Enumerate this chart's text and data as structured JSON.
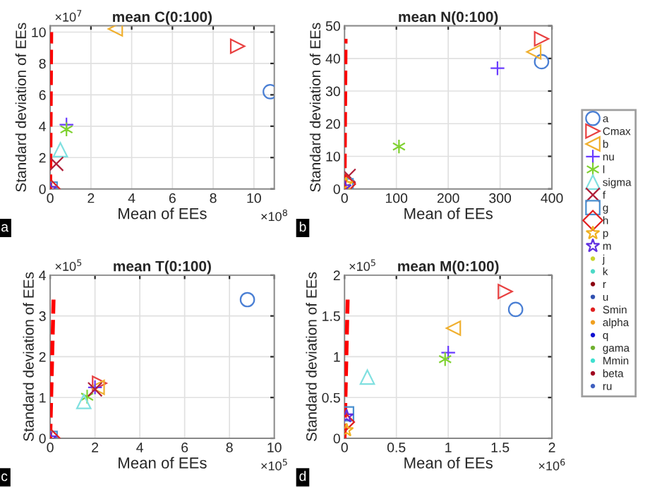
{
  "chart_data": [
    {
      "type": "scatter",
      "title": "mean C(0:100)",
      "xlabel": "Mean of EEs",
      "ylabel": "Standard deviation of EEs",
      "grid": true,
      "xlim": [
        0,
        11
      ],
      "ylim": [
        0,
        10.4
      ],
      "xticks": [
        0,
        2,
        4,
        6,
        8,
        10
      ],
      "yticks": [
        0,
        2,
        4,
        6,
        8,
        10
      ],
      "annotations": [
        "×10$^{7}$",
        "×10$^{8}$",
        "a"
      ],
      "series": [
        {
          "color": "#4a7fd4",
          "marker": "circle",
          "x": [
            10.8
          ],
          "values": [
            6.2
          ]
        },
        {
          "color": "#e84040",
          "marker": "triangle_right",
          "x": [
            9.2
          ],
          "values": [
            9.1
          ]
        },
        {
          "color": "#f0b030",
          "marker": "triangle_left",
          "x": [
            3.2
          ],
          "values": [
            10.2
          ]
        },
        {
          "color": "#6a3cff",
          "marker": "plus",
          "x": [
            0.8
          ],
          "values": [
            4.1
          ]
        },
        {
          "color": "#7fd130",
          "marker": "cross",
          "x": [
            0.8
          ],
          "values": [
            3.8
          ]
        },
        {
          "color": "#80e0e0",
          "marker": "triangle",
          "x": [
            0.5
          ],
          "values": [
            2.5
          ]
        },
        {
          "color": "#b0203a",
          "marker": "x",
          "x": [
            0.3
          ],
          "values": [
            1.6
          ]
        },
        {
          "color": "#4a90d0",
          "marker": "square",
          "x": [
            0
          ],
          "values": [
            0
          ]
        },
        {
          "color": "#e02020",
          "marker": "diamond",
          "x": [
            0
          ],
          "values": [
            0
          ]
        },
        {
          "color": "#f0b020",
          "marker": "star",
          "x": [
            0
          ],
          "values": [
            0
          ]
        },
        {
          "color": "#6030e0",
          "marker": "star",
          "x": [
            0
          ],
          "values": [
            0
          ]
        },
        {
          "type": "line",
          "line_style": "dashed",
          "color": "#ff0000",
          "x": [
            0,
            0.05
          ],
          "values": [
            0,
            10
          ]
        }
      ]
    },
    {
      "type": "scatter",
      "title": "mean N(0:100)",
      "xlabel": "Mean of EEs",
      "ylabel": "Standard deviation of EEs",
      "grid": true,
      "legend": "right",
      "xlim": [
        0,
        400
      ],
      "ylim": [
        0,
        50
      ],
      "xticks": [
        0,
        100,
        200,
        300,
        400
      ],
      "yticks": [
        0,
        10,
        20,
        30,
        40,
        50
      ],
      "annotations": [
        "b"
      ],
      "series": [
        {
          "name": "a",
          "color": "#4a7fd4",
          "marker": "circle",
          "x": [
            380
          ],
          "values": [
            39
          ]
        },
        {
          "name": "Cmax",
          "color": "#e84040",
          "marker": "triangle_right",
          "x": [
            380
          ],
          "values": [
            46
          ]
        },
        {
          "name": "b",
          "color": "#f0b030",
          "marker": "triangle_left",
          "x": [
            365
          ],
          "values": [
            42
          ]
        },
        {
          "name": "nu",
          "color": "#6a3cff",
          "marker": "plus",
          "x": [
            295
          ],
          "values": [
            37
          ]
        },
        {
          "name": "l",
          "color": "#7fd130",
          "marker": "cross",
          "x": [
            105
          ],
          "values": [
            13
          ]
        },
        {
          "name": "sigma",
          "color": "#80e0e0",
          "marker": "triangle",
          "x": [
            null
          ],
          "values": [
            null
          ]
        },
        {
          "name": "f",
          "color": "#b0203a",
          "marker": "x",
          "x": [
            8
          ],
          "values": [
            4
          ]
        },
        {
          "name": "g",
          "color": "#4a90d0",
          "marker": "square",
          "x": [
            3
          ],
          "values": [
            1
          ]
        },
        {
          "name": "h",
          "color": "#e02020",
          "marker": "diamond",
          "x": [
            2
          ],
          "values": [
            1.5
          ]
        },
        {
          "name": "p",
          "color": "#f0b020",
          "marker": "star",
          "x": [
            3
          ],
          "values": [
            1.5
          ]
        },
        {
          "name": "m",
          "color": "#6030e0",
          "marker": "star",
          "x": [
            0
          ],
          "values": [
            0.5
          ]
        },
        {
          "name": "j",
          "color": "#c8d42c",
          "marker": "point",
          "x": [
            null
          ],
          "values": [
            null
          ]
        },
        {
          "name": "k",
          "color": "#4dd9c7",
          "marker": "point",
          "x": [
            null
          ],
          "values": [
            null
          ]
        },
        {
          "name": "r",
          "color": "#8b0010",
          "marker": "point",
          "x": [
            null
          ],
          "values": [
            null
          ]
        },
        {
          "name": "u",
          "color": "#3050b0",
          "marker": "point",
          "x": [
            null
          ],
          "values": [
            null
          ]
        },
        {
          "name": "Smin",
          "color": "#e02020",
          "marker": "point",
          "x": [
            null
          ],
          "values": [
            null
          ]
        },
        {
          "name": "alpha",
          "color": "#f0a020",
          "marker": "point",
          "x": [
            null
          ],
          "values": [
            null
          ]
        },
        {
          "name": "q",
          "color": "#1010d0",
          "marker": "point",
          "x": [
            null
          ],
          "values": [
            null
          ]
        },
        {
          "name": "gama",
          "color": "#70b030",
          "marker": "point",
          "x": [
            null
          ],
          "values": [
            null
          ]
        },
        {
          "name": "Mmin",
          "color": "#40e0d0",
          "marker": "point",
          "x": [
            null
          ],
          "values": [
            null
          ]
        },
        {
          "name": "beta",
          "color": "#a00020",
          "marker": "point",
          "x": [
            null
          ],
          "values": [
            null
          ]
        },
        {
          "name": "ru",
          "color": "#4060c0",
          "marker": "point",
          "x": [
            null
          ],
          "values": [
            null
          ]
        },
        {
          "type": "line",
          "line_style": "dashed",
          "color": "#ff0000",
          "x": [
            0,
            2
          ],
          "values": [
            0,
            46
          ]
        }
      ]
    },
    {
      "type": "scatter",
      "title": "mean T(0:100)",
      "xlabel": "Mean of EEs",
      "ylabel": "Standard deviation of EEs",
      "grid": true,
      "xlim": [
        0,
        10
      ],
      "ylim": [
        0,
        4
      ],
      "xticks": [
        0,
        2,
        4,
        6,
        8,
        10
      ],
      "yticks": [
        0,
        1,
        2,
        3,
        4
      ],
      "annotations": [
        "×10$^{5}$",
        "×10$^{5}$",
        "c"
      ],
      "series": [
        {
          "color": "#4a7fd4",
          "marker": "circle",
          "x": [
            8.8
          ],
          "values": [
            3.4
          ]
        },
        {
          "color": "#e84040",
          "marker": "triangle_right",
          "x": [
            2.2
          ],
          "values": [
            1.35
          ]
        },
        {
          "color": "#f0b030",
          "marker": "triangle_left",
          "x": [
            2.1
          ],
          "values": [
            1.25
          ]
        },
        {
          "color": "#6a3cff",
          "marker": "plus",
          "x": [
            2.0
          ],
          "values": [
            1.25
          ]
        },
        {
          "color": "#7fd130",
          "marker": "cross",
          "x": [
            1.65
          ],
          "values": [
            1.02
          ]
        },
        {
          "color": "#80e0e0",
          "marker": "triangle",
          "x": [
            1.5
          ],
          "values": [
            0.9
          ]
        },
        {
          "color": "#b0203a",
          "marker": "x",
          "x": [
            2.0
          ],
          "values": [
            1.2
          ]
        },
        {
          "color": "#4a90d0",
          "marker": "square",
          "x": [
            0
          ],
          "values": [
            0
          ]
        },
        {
          "color": "#e02020",
          "marker": "diamond",
          "x": [
            0
          ],
          "values": [
            0
          ]
        },
        {
          "color": "#f0b020",
          "marker": "star",
          "x": [
            0
          ],
          "values": [
            0
          ]
        },
        {
          "color": "#6030e0",
          "marker": "star",
          "x": [
            0
          ],
          "values": [
            0
          ]
        },
        {
          "type": "line",
          "line_style": "dashed",
          "color": "#ff0000",
          "x": [
            0,
            0.15
          ],
          "values": [
            0,
            3.4
          ]
        }
      ]
    },
    {
      "type": "scatter",
      "title": "mean M(0:100)",
      "xlabel": "Mean of EEs",
      "ylabel": "Standard deviation of EEs",
      "grid": true,
      "xlim": [
        0,
        2
      ],
      "ylim": [
        0,
        2
      ],
      "xticks": [
        0,
        0.5,
        1,
        1.5,
        2
      ],
      "yticks": [
        0,
        0.5,
        1,
        1.5,
        2
      ],
      "annotations": [
        "×10$^{5}$",
        "×10$^{6}$",
        "d"
      ],
      "series": [
        {
          "color": "#4a7fd4",
          "marker": "circle",
          "x": [
            1.65
          ],
          "values": [
            1.58
          ]
        },
        {
          "color": "#e84040",
          "marker": "triangle_right",
          "x": [
            1.55
          ],
          "values": [
            1.8
          ]
        },
        {
          "color": "#f0b030",
          "marker": "triangle_left",
          "x": [
            1.05
          ],
          "values": [
            1.35
          ]
        },
        {
          "color": "#6a3cff",
          "marker": "plus",
          "x": [
            1.0
          ],
          "values": [
            1.05
          ]
        },
        {
          "color": "#7fd130",
          "marker": "cross",
          "x": [
            0.97
          ],
          "values": [
            0.97
          ]
        },
        {
          "color": "#80e0e0",
          "marker": "triangle",
          "x": [
            0.22
          ],
          "values": [
            0.75
          ]
        },
        {
          "color": "#b0203a",
          "marker": "x",
          "x": [
            null
          ],
          "values": [
            null
          ]
        },
        {
          "color": "#4a90d0",
          "marker": "square",
          "x": [
            0.02
          ],
          "values": [
            0.3
          ]
        },
        {
          "color": "#e02020",
          "marker": "diamond",
          "x": [
            0
          ],
          "values": [
            0.2
          ]
        },
        {
          "color": "#f0b020",
          "marker": "star",
          "x": [
            0.02
          ],
          "values": [
            0.1
          ]
        },
        {
          "color": "#6030e0",
          "marker": "star",
          "x": [
            0.02
          ],
          "values": [
            0.27
          ]
        },
        {
          "type": "line",
          "line_style": "dashed",
          "color": "#ff0000",
          "x": [
            0,
            0.03
          ],
          "values": [
            0,
            1.7
          ]
        }
      ]
    }
  ]
}
